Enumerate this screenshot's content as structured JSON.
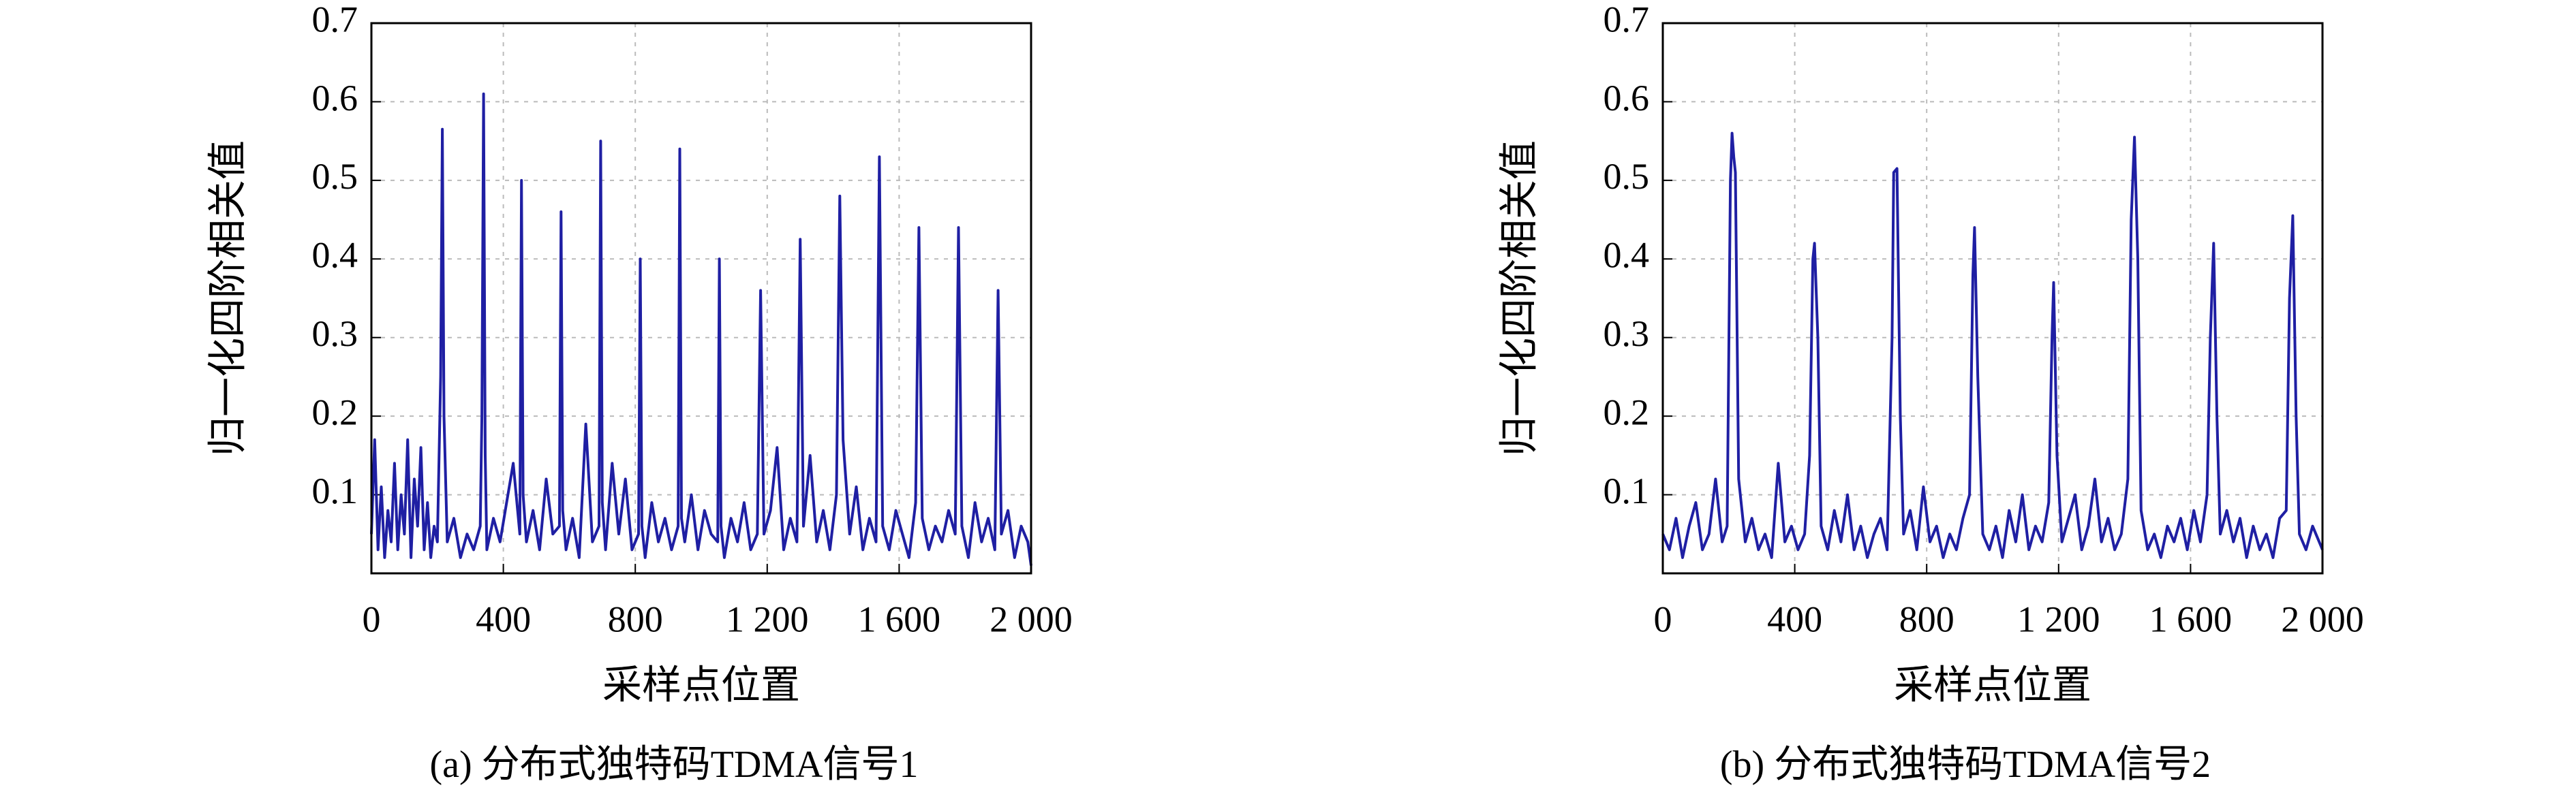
{
  "chart_data": [
    {
      "type": "line",
      "ylabel": "归一化四阶相关值",
      "xlabel": "采样点位置",
      "caption": "(a) 分布式独特码TDMA信号1",
      "color": "#1f1fa3",
      "grid": true,
      "xlim": [
        0,
        2000
      ],
      "xticks": [
        0,
        400,
        800,
        {
          "value": 1200,
          "label": "1 200"
        },
        {
          "value": 1600,
          "label": "1 600"
        },
        {
          "value": 2000,
          "label": "2 000"
        }
      ],
      "ylim": [
        0,
        0.7
      ],
      "yticks": [
        0.1,
        0.2,
        0.3,
        0.4,
        0.5,
        0.6,
        0.7
      ],
      "x": [
        0,
        10,
        20,
        30,
        40,
        50,
        60,
        70,
        80,
        90,
        100,
        110,
        120,
        130,
        140,
        150,
        160,
        170,
        180,
        190,
        200,
        210,
        215,
        220,
        230,
        250,
        270,
        290,
        310,
        330,
        335,
        340,
        345,
        350,
        370,
        390,
        410,
        430,
        450,
        455,
        460,
        470,
        490,
        510,
        530,
        550,
        570,
        575,
        580,
        590,
        610,
        630,
        650,
        670,
        690,
        695,
        700,
        710,
        730,
        750,
        770,
        790,
        810,
        815,
        820,
        830,
        850,
        870,
        890,
        910,
        930,
        935,
        940,
        950,
        970,
        990,
        1010,
        1030,
        1050,
        1055,
        1060,
        1070,
        1090,
        1110,
        1130,
        1150,
        1170,
        1180,
        1190,
        1210,
        1230,
        1250,
        1270,
        1290,
        1300,
        1310,
        1330,
        1350,
        1370,
        1390,
        1410,
        1420,
        1430,
        1450,
        1470,
        1490,
        1510,
        1530,
        1540,
        1550,
        1570,
        1590,
        1610,
        1630,
        1650,
        1660,
        1670,
        1690,
        1710,
        1730,
        1750,
        1770,
        1780,
        1790,
        1810,
        1830,
        1850,
        1870,
        1890,
        1900,
        1910,
        1930,
        1950,
        1970,
        1990,
        2000
      ],
      "values": [
        0.05,
        0.17,
        0.03,
        0.11,
        0.02,
        0.08,
        0.04,
        0.14,
        0.03,
        0.1,
        0.05,
        0.17,
        0.02,
        0.12,
        0.06,
        0.16,
        0.03,
        0.09,
        0.02,
        0.06,
        0.04,
        0.25,
        0.565,
        0.2,
        0.04,
        0.07,
        0.02,
        0.05,
        0.03,
        0.06,
        0.2,
        0.61,
        0.15,
        0.03,
        0.07,
        0.04,
        0.09,
        0.14,
        0.05,
        0.5,
        0.1,
        0.04,
        0.08,
        0.03,
        0.12,
        0.05,
        0.06,
        0.46,
        0.08,
        0.03,
        0.07,
        0.02,
        0.19,
        0.04,
        0.06,
        0.55,
        0.09,
        0.03,
        0.14,
        0.05,
        0.12,
        0.03,
        0.05,
        0.4,
        0.06,
        0.02,
        0.09,
        0.04,
        0.07,
        0.03,
        0.06,
        0.54,
        0.07,
        0.04,
        0.1,
        0.03,
        0.08,
        0.05,
        0.04,
        0.4,
        0.06,
        0.02,
        0.07,
        0.04,
        0.09,
        0.03,
        0.05,
        0.36,
        0.05,
        0.08,
        0.16,
        0.03,
        0.07,
        0.04,
        0.425,
        0.06,
        0.15,
        0.04,
        0.08,
        0.03,
        0.1,
        0.48,
        0.17,
        0.05,
        0.11,
        0.03,
        0.07,
        0.04,
        0.53,
        0.06,
        0.03,
        0.08,
        0.05,
        0.02,
        0.09,
        0.44,
        0.07,
        0.03,
        0.06,
        0.04,
        0.08,
        0.05,
        0.44,
        0.06,
        0.02,
        0.09,
        0.04,
        0.07,
        0.03,
        0.36,
        0.05,
        0.08,
        0.02,
        0.06,
        0.04,
        0.01
      ]
    },
    {
      "type": "line",
      "ylabel": "归一化四阶相关值",
      "xlabel": "采样点位置",
      "caption": "(b) 分布式独特码TDMA信号2",
      "color": "#1f1fa3",
      "grid": true,
      "xlim": [
        0,
        2000
      ],
      "xticks": [
        0,
        400,
        800,
        {
          "value": 1200,
          "label": "1 200"
        },
        {
          "value": 1600,
          "label": "1 600"
        },
        {
          "value": 2000,
          "label": "2 000"
        }
      ],
      "ylim": [
        0,
        0.7
      ],
      "yticks": [
        0.1,
        0.2,
        0.3,
        0.4,
        0.5,
        0.6,
        0.7
      ],
      "x": [
        0,
        20,
        40,
        60,
        80,
        100,
        120,
        140,
        160,
        180,
        195,
        205,
        210,
        215,
        220,
        230,
        250,
        270,
        290,
        310,
        330,
        350,
        370,
        390,
        410,
        430,
        445,
        455,
        460,
        470,
        480,
        500,
        520,
        540,
        560,
        580,
        600,
        620,
        640,
        660,
        680,
        695,
        700,
        710,
        720,
        730,
        750,
        770,
        790,
        810,
        830,
        850,
        870,
        890,
        910,
        930,
        940,
        945,
        955,
        970,
        990,
        1010,
        1030,
        1050,
        1070,
        1090,
        1110,
        1130,
        1150,
        1170,
        1180,
        1185,
        1195,
        1210,
        1230,
        1250,
        1270,
        1290,
        1310,
        1330,
        1350,
        1370,
        1390,
        1410,
        1420,
        1430,
        1440,
        1450,
        1470,
        1490,
        1510,
        1530,
        1550,
        1570,
        1590,
        1610,
        1630,
        1650,
        1660,
        1670,
        1680,
        1690,
        1710,
        1730,
        1750,
        1770,
        1790,
        1810,
        1830,
        1850,
        1870,
        1890,
        1900,
        1910,
        1920,
        1930,
        1950,
        1970,
        1990,
        2000
      ],
      "values": [
        0.05,
        0.03,
        0.07,
        0.02,
        0.06,
        0.09,
        0.03,
        0.05,
        0.12,
        0.04,
        0.06,
        0.5,
        0.56,
        0.53,
        0.51,
        0.12,
        0.04,
        0.07,
        0.03,
        0.05,
        0.02,
        0.14,
        0.04,
        0.06,
        0.03,
        0.05,
        0.15,
        0.4,
        0.42,
        0.3,
        0.06,
        0.03,
        0.08,
        0.04,
        0.1,
        0.03,
        0.06,
        0.02,
        0.05,
        0.07,
        0.03,
        0.3,
        0.51,
        0.515,
        0.2,
        0.05,
        0.08,
        0.03,
        0.11,
        0.04,
        0.06,
        0.02,
        0.05,
        0.03,
        0.07,
        0.1,
        0.38,
        0.44,
        0.25,
        0.05,
        0.03,
        0.06,
        0.02,
        0.08,
        0.04,
        0.1,
        0.03,
        0.06,
        0.04,
        0.09,
        0.3,
        0.37,
        0.15,
        0.04,
        0.07,
        0.1,
        0.03,
        0.06,
        0.12,
        0.04,
        0.07,
        0.03,
        0.05,
        0.12,
        0.45,
        0.555,
        0.4,
        0.08,
        0.03,
        0.05,
        0.02,
        0.06,
        0.04,
        0.07,
        0.03,
        0.08,
        0.04,
        0.1,
        0.3,
        0.42,
        0.2,
        0.05,
        0.08,
        0.04,
        0.07,
        0.02,
        0.06,
        0.03,
        0.05,
        0.02,
        0.07,
        0.08,
        0.35,
        0.455,
        0.2,
        0.05,
        0.03,
        0.06,
        0.04,
        0.03
      ]
    }
  ]
}
